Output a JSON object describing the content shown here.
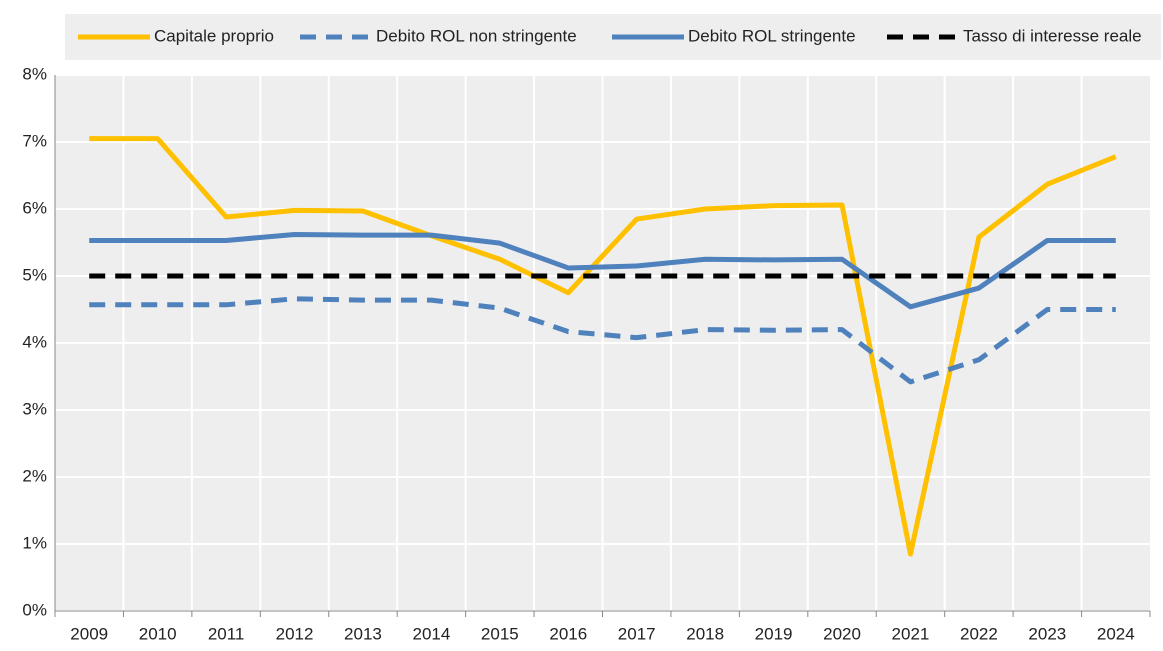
{
  "chart_data": {
    "type": "line",
    "categories": [
      "2009",
      "2010",
      "2011",
      "2012",
      "2013",
      "2014",
      "2015",
      "2016",
      "2017",
      "2018",
      "2019",
      "2020",
      "2021",
      "2022",
      "2023",
      "2024"
    ],
    "series": [
      {
        "name": "Capitale proprio",
        "color": "#ffc000",
        "style": "solid",
        "values": [
          7.05,
          7.05,
          5.88,
          5.98,
          5.97,
          5.6,
          5.25,
          4.75,
          5.85,
          6.0,
          6.05,
          6.06,
          0.85,
          5.58,
          6.37,
          6.78
        ]
      },
      {
        "name": "Debito ROL non stringente",
        "color": "#4f81bd",
        "style": "dashed",
        "values": [
          4.57,
          4.57,
          4.57,
          4.66,
          4.64,
          4.64,
          4.52,
          4.17,
          4.08,
          4.2,
          4.19,
          4.2,
          3.42,
          3.75,
          4.5,
          4.5
        ]
      },
      {
        "name": "Debito ROL stringente",
        "color": "#4f81bd",
        "style": "solid",
        "values": [
          5.53,
          5.53,
          5.53,
          5.62,
          5.61,
          5.61,
          5.49,
          5.12,
          5.15,
          5.25,
          5.24,
          5.25,
          4.54,
          4.82,
          5.53,
          5.53
        ]
      },
      {
        "name": "Tasso di interesse  reale",
        "color": "#000000",
        "style": "dashed",
        "values": [
          5,
          5,
          5,
          5,
          5,
          5,
          5,
          5,
          5,
          5,
          5,
          5,
          5,
          5,
          5,
          5
        ]
      }
    ],
    "ylim": [
      0,
      8
    ],
    "yticks": [
      {
        "value": 0,
        "label": "0%"
      },
      {
        "value": 1,
        "label": "1%"
      },
      {
        "value": 2,
        "label": "2%"
      },
      {
        "value": 3,
        "label": "3%"
      },
      {
        "value": 4,
        "label": "4%"
      },
      {
        "value": 5,
        "label": "5%"
      },
      {
        "value": 6,
        "label": "6%"
      },
      {
        "value": 7,
        "label": "7%"
      },
      {
        "value": 8,
        "label": "8%"
      }
    ],
    "grid": true,
    "legend": "top"
  }
}
